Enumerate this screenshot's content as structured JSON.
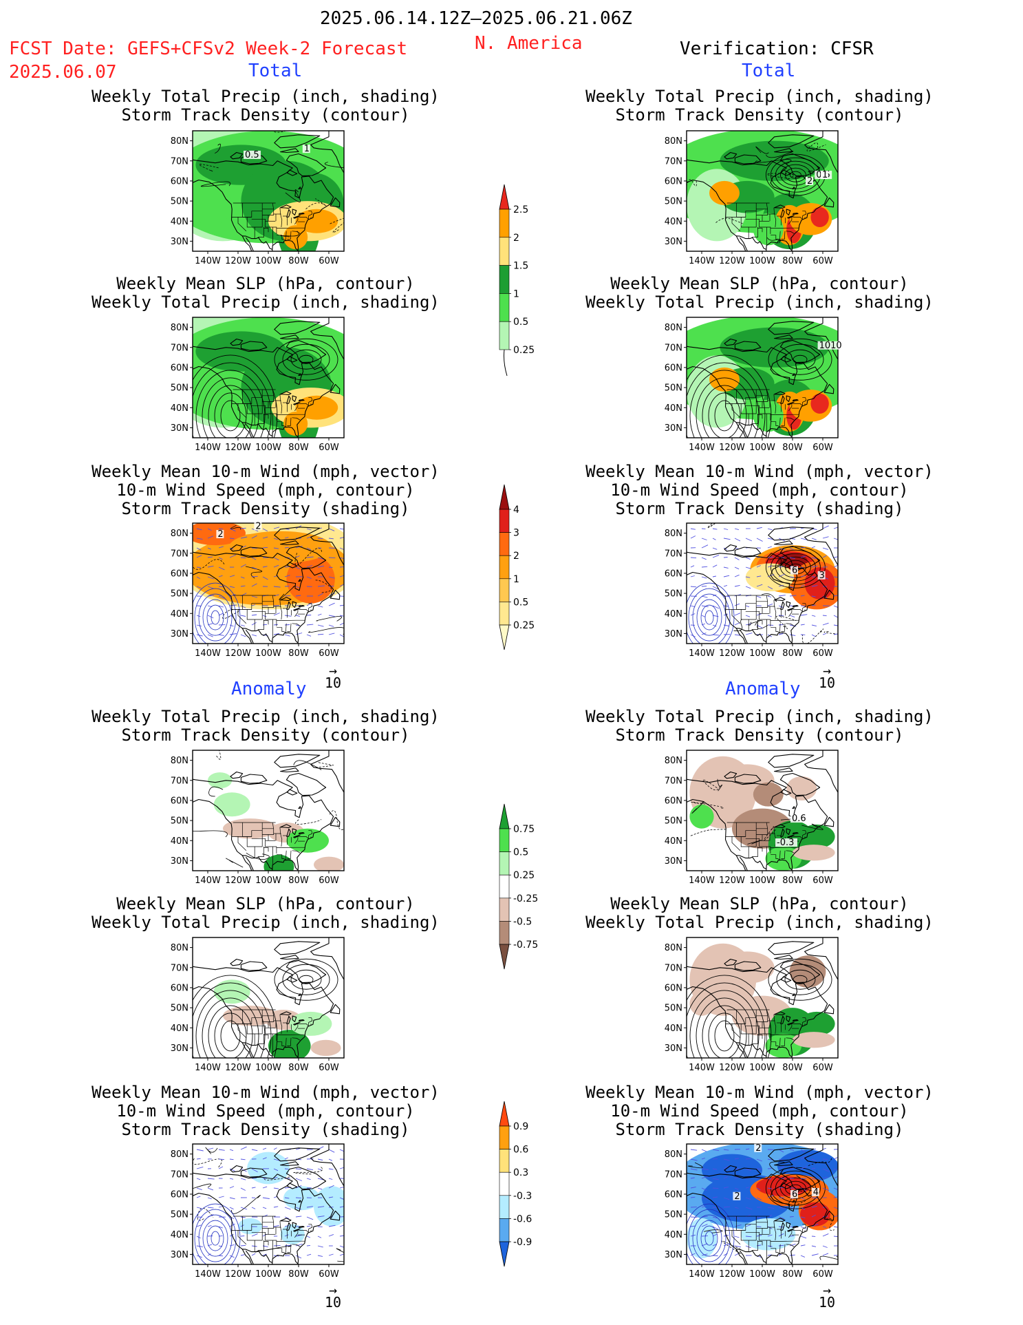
{
  "header": {
    "period": "2025.06.14.12Z–2025.06.21.06Z",
    "region": "N. America",
    "fcst_label": "FCST Date: GEFS+CFSv2 Week-2 Forecast",
    "fcst_date": "2025.06.07",
    "verification": "Verification: CFSR"
  },
  "sections": {
    "total": "Total",
    "anomaly": "Anomaly"
  },
  "panel_titles": {
    "precip_storm": [
      "Weekly Total Precip (inch, shading)",
      "Storm Track Density (contour)"
    ],
    "slp_precip": [
      "Weekly Mean SLP (hPa, contour)",
      "Weekly Total Precip (inch, shading)"
    ],
    "wind_storm": [
      "Weekly Mean 10-m Wind (mph, vector)",
      "10-m Wind Speed (mph, contour)",
      "Storm Track Density (shading)"
    ]
  },
  "axes": {
    "lat_labels": [
      "80N",
      "70N",
      "60N",
      "50N",
      "40N",
      "30N"
    ],
    "lon_labels": [
      "140W",
      "120W",
      "100W",
      "80W",
      "60W"
    ]
  },
  "vector_ref": {
    "arrow": "→",
    "value": "10"
  },
  "contour_labels": {
    "fcst_total_precip": [
      "0.5",
      "1"
    ],
    "verif_total_precip": [
      "0.5",
      "1",
      "2"
    ],
    "verif_total_slp": [
      "1010"
    ],
    "fcst_total_wind": [
      "2",
      "2"
    ],
    "verif_total_wind": [
      "6",
      "3"
    ],
    "verif_anom_precip": [
      "0.6",
      "-0.3"
    ],
    "verif_anom_wind": [
      "2",
      "2",
      "6",
      "4"
    ]
  },
  "colorbars": {
    "total_precip": {
      "labels": [
        "2.5",
        "2",
        "1.5",
        "1",
        "0.5",
        "0.25"
      ],
      "colors": [
        "#e8281e",
        "#ffa000",
        "#ffe27a",
        "#1e9e32",
        "#4ee04e",
        "#b4f5b4"
      ]
    },
    "total_storm": {
      "labels": [
        "4",
        "3",
        "2",
        "1",
        "0.5",
        "0.25"
      ],
      "colors": [
        "#9b1010",
        "#e0201a",
        "#ff6a10",
        "#ffa010",
        "#ffc850",
        "#ffe890",
        "#fffac8"
      ]
    },
    "anom_precip": {
      "labels": [
        "0.75",
        "0.5",
        "0.25",
        "-0.25",
        "-0.5",
        "-0.75"
      ],
      "colors": [
        "#1ea032",
        "#4ee04e",
        "#b4f5b4",
        "#ffffff",
        "#e3c3b4",
        "#b48c78",
        "#7a5040"
      ]
    },
    "anom_storm": {
      "labels": [
        "0.9",
        "0.6",
        "0.3",
        "-0.3",
        "-0.6",
        "-0.9"
      ],
      "colors": [
        "#ff4a10",
        "#ffa010",
        "#ffe27a",
        "#ffffff",
        "#b4ecff",
        "#5aaaf0",
        "#1e64dc"
      ]
    }
  },
  "colors": {
    "red_text": "#ff2020",
    "blue_text": "#2040ff",
    "vector_blue": "#5050e0"
  }
}
